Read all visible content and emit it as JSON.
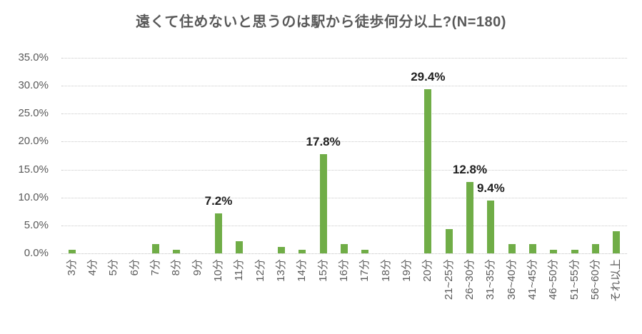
{
  "chart_data": {
    "type": "bar",
    "title": "遠くて住めないと思うのは駅から徒歩何分以上?(N=180)",
    "categories": [
      "3分",
      "4分",
      "5分",
      "6分",
      "7分",
      "8分",
      "9分",
      "10分",
      "11分",
      "12分",
      "13分",
      "14分",
      "15分",
      "16分",
      "17分",
      "18分",
      "19分",
      "20分",
      "21~25分",
      "26~30分",
      "31~35分",
      "36~40分",
      "41~45分",
      "46~50分",
      "51~55分",
      "56~60分",
      "それ以上"
    ],
    "values": [
      0.6,
      0,
      0,
      0,
      1.7,
      0.6,
      0,
      7.2,
      2.2,
      0,
      1.1,
      0.6,
      17.8,
      1.7,
      0.6,
      0,
      0,
      29.4,
      4.4,
      12.8,
      9.4,
      1.7,
      1.7,
      0.6,
      0.6,
      1.7,
      3.9
    ],
    "value_labels": [
      "",
      "",
      "",
      "",
      "",
      "",
      "",
      "7.2%",
      "",
      "",
      "",
      "",
      "17.8%",
      "",
      "",
      "",
      "",
      "29.4%",
      "",
      "12.8%",
      "9.4%",
      "",
      "",
      "",
      "",
      "",
      ""
    ],
    "xlabel": "",
    "ylabel": "",
    "ylim": [
      0,
      35
    ],
    "y_ticks": [
      "0.0%",
      "5.0%",
      "10.0%",
      "15.0%",
      "20.0%",
      "25.0%",
      "30.0%",
      "35.0%"
    ],
    "y_tick_step": 5,
    "grid": true,
    "legend": "none"
  },
  "colors": {
    "bar": "#70AD47",
    "title_text": "#595959",
    "axis_text": "#595959",
    "gridline": "#C9C9C9",
    "data_label": "#1F1F1F",
    "background": "#FFFFFF"
  }
}
